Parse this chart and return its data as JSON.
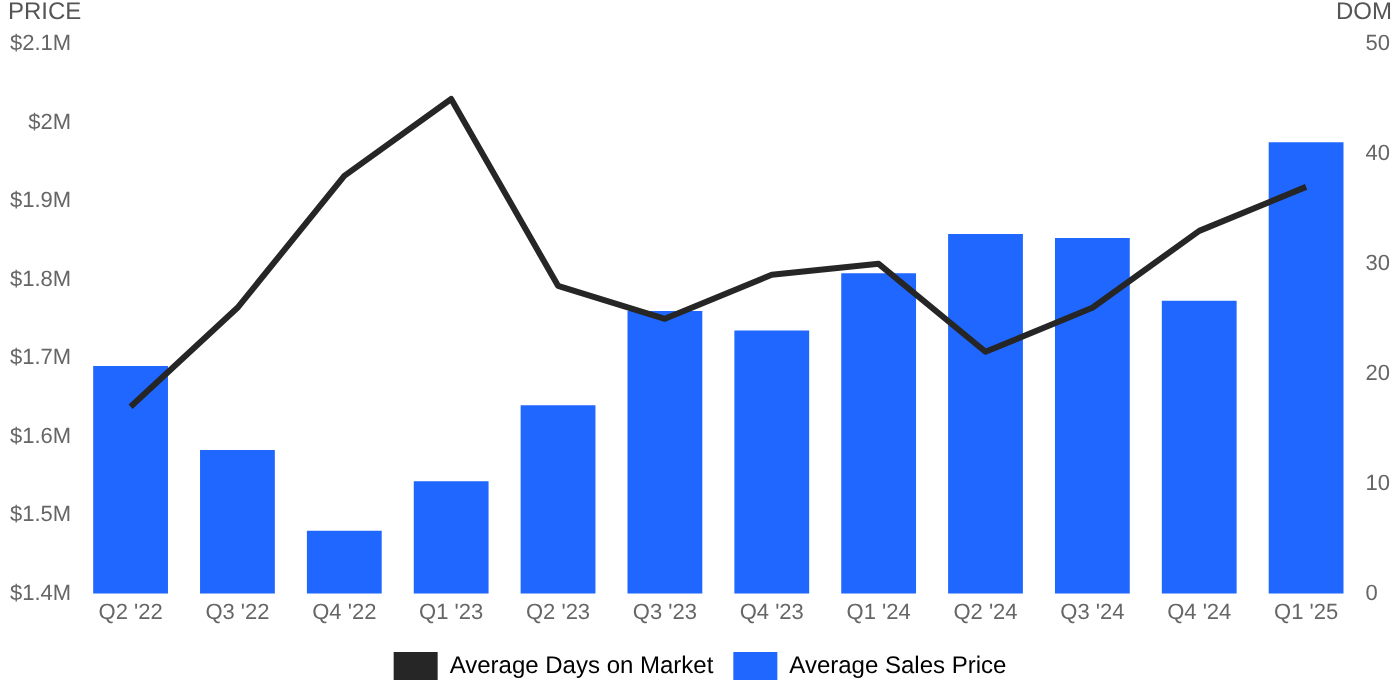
{
  "chart_data": {
    "type": "bar",
    "ylabel": "PRICE",
    "y2label": "DOM",
    "categories": [
      "Q2 '22",
      "Q3 '22",
      "Q4 '22",
      "Q1 '23",
      "Q2 '23",
      "Q3 '23",
      "Q4 '23",
      "Q1 '24",
      "Q2 '24",
      "Q3 '24",
      "Q4 '24",
      "Q1 '25"
    ],
    "series": [
      {
        "name": "Average Days on Market",
        "type": "line",
        "axis": "y2",
        "color": "#262626",
        "values": [
          17,
          26,
          38,
          45,
          28,
          25,
          29,
          30,
          22,
          26,
          33,
          37
        ]
      },
      {
        "name": "Average Sales Price",
        "color": "#2067ff",
        "values": [
          1690000,
          1583000,
          1480000,
          1543000,
          1640000,
          1760000,
          1735000,
          1808000,
          1858000,
          1853000,
          1773000,
          1975000
        ]
      }
    ],
    "ylim": [
      1400000,
      2100000
    ],
    "yticks": [
      {
        "value": 1400000,
        "label": "$1.4M"
      },
      {
        "value": 1500000,
        "label": "$1.5M"
      },
      {
        "value": 1600000,
        "label": "$1.6M"
      },
      {
        "value": 1700000,
        "label": "$1.7M"
      },
      {
        "value": 1800000,
        "label": "$1.8M"
      },
      {
        "value": 1900000,
        "label": "$1.9M"
      },
      {
        "value": 2000000,
        "label": "$2M"
      },
      {
        "value": 2100000,
        "label": "$2.1M"
      }
    ],
    "y2lim": [
      0,
      50
    ],
    "y2ticks": [
      0,
      10,
      20,
      30,
      40,
      50
    ],
    "grid": false,
    "legend": "bottom",
    "marker": "none",
    "line_style": "solid"
  }
}
